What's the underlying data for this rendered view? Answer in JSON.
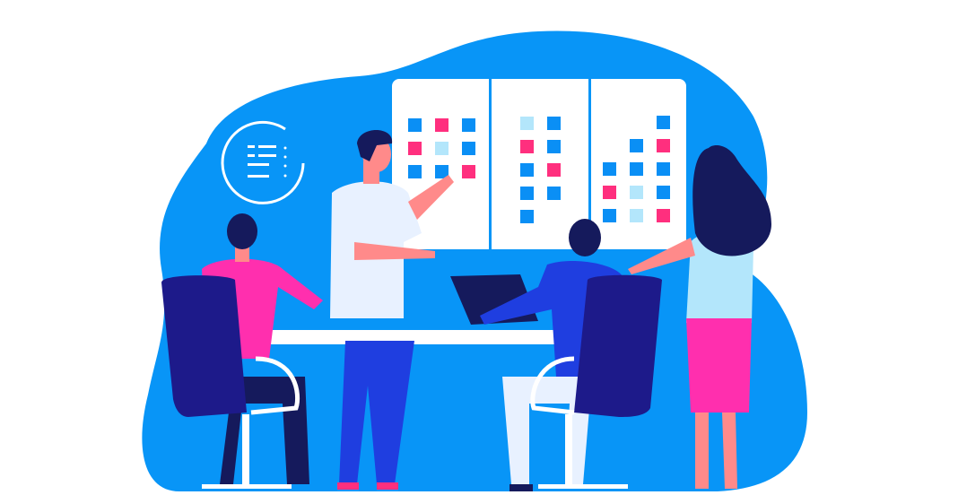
{
  "colors": {
    "background": "#ffffff",
    "blob": "#0895f7",
    "board": "#ffffff",
    "tile_blue": "#0a8ff5",
    "tile_pink": "#ff2f7e",
    "tile_light": "#b3e6fb",
    "chair": "#1d1a8a",
    "magenta": "#ff2fae",
    "navy": "#151a5c",
    "skin": "#ff8a8a"
  },
  "board": {
    "panel1": [
      [
        "blue",
        "pink",
        "blue"
      ],
      [
        "pink",
        "light",
        "blue"
      ],
      [
        "blue",
        "blue",
        "pink"
      ]
    ],
    "panel2": [
      [
        "light",
        "blue"
      ],
      [
        "pink",
        "blue"
      ],
      [
        "blue",
        "pink"
      ],
      [
        "blue",
        "blue"
      ],
      [
        "blue",
        null
      ]
    ],
    "panel3": [
      [
        "blue",
        "pink",
        "blue"
      ],
      [
        "blue",
        "blue",
        "light",
        "light"
      ],
      [
        "blue",
        "pink",
        "blue",
        "blue",
        "pink"
      ]
    ]
  }
}
